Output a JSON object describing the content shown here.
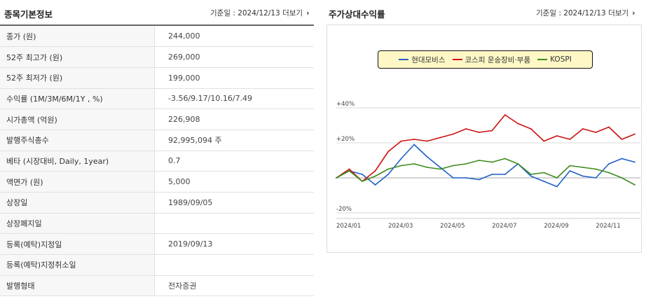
{
  "info_section": {
    "title": "종목기본정보",
    "base_date_label": "기준일 : 2024/12/13",
    "more_label": "더보기"
  },
  "chart_section": {
    "title": "주가상대수익률",
    "base_date_label": "기준일 : 2024/12/13",
    "more_label": "더보기"
  },
  "info_rows": [
    {
      "key": "종가 (원)",
      "value": "244,000"
    },
    {
      "key": "52주 최고가 (원)",
      "value": "269,000"
    },
    {
      "key": "52주 최저가 (원)",
      "value": "199,000"
    },
    {
      "key": "수익률 (1M/3M/6M/1Y , %)",
      "value": "-3.56/9.17/10.16/7.49"
    },
    {
      "key": "시가총액 (억원)",
      "value": "226,908"
    },
    {
      "key": "발행주식총수",
      "value": "92,995,094 주"
    },
    {
      "key": "베타 (시장대비, Daily, 1year)",
      "value": "0.7"
    },
    {
      "key": "액면가 (원)",
      "value": "5,000"
    },
    {
      "key": "상장일",
      "value": "1989/09/05"
    },
    {
      "key": "상장폐지일",
      "value": ""
    },
    {
      "key": "등록(예탁)지정일",
      "value": "2019/09/13"
    },
    {
      "key": "등록(예탁)지정취소일",
      "value": ""
    },
    {
      "key": "발행형태",
      "value": "전자증권"
    }
  ],
  "chart_data": {
    "type": "line",
    "title": "",
    "xlabel": "",
    "ylabel": "",
    "ylim": [
      -20,
      40
    ],
    "y_ticks": [
      "+40%",
      "+20%",
      "-20%"
    ],
    "y_tick_values": [
      40,
      20,
      -20
    ],
    "x_ticks": [
      "2024/01",
      "2024/03",
      "2024/05",
      "2024/07",
      "2024/09",
      "2024/11"
    ],
    "x_tick_index": [
      0,
      2,
      4,
      6,
      8,
      10
    ],
    "x_points": [
      "2024-01-02",
      "2024-01-15",
      "2024-01-31",
      "2024-02-14",
      "2024-02-29",
      "2024-03-15",
      "2024-03-29",
      "2024-04-15",
      "2024-04-30",
      "2024-05-15",
      "2024-05-31",
      "2024-06-14",
      "2024-06-28",
      "2024-07-15",
      "2024-07-31",
      "2024-08-14",
      "2024-08-30",
      "2024-09-13",
      "2024-09-30",
      "2024-10-15",
      "2024-10-31",
      "2024-11-15",
      "2024-11-29",
      "2024-12-13"
    ],
    "series": [
      {
        "name": "현대모비스",
        "color": "#1f5fc8",
        "values": [
          0,
          4,
          2,
          -4,
          2,
          11,
          19,
          12,
          6,
          0,
          0,
          -1,
          2,
          2,
          8,
          1,
          -2,
          -5,
          4,
          1,
          0,
          8,
          11,
          9
        ]
      },
      {
        "name": "코스피 운송장비·부품",
        "color": "#cc1111",
        "values": [
          0,
          5,
          -2,
          4,
          15,
          21,
          22,
          21,
          23,
          25,
          28,
          26,
          27,
          36,
          31,
          28,
          21,
          24,
          22,
          28,
          26,
          29,
          22,
          25
        ]
      },
      {
        "name": "KOSPI",
        "color": "#3d8c1d",
        "values": [
          0,
          4,
          -2,
          1,
          5,
          7,
          8,
          6,
          5,
          7,
          8,
          10,
          9,
          11,
          8,
          2,
          3,
          0,
          7,
          6,
          5,
          3,
          0,
          -4
        ]
      }
    ],
    "legend_position": "top-center",
    "grid": true
  }
}
